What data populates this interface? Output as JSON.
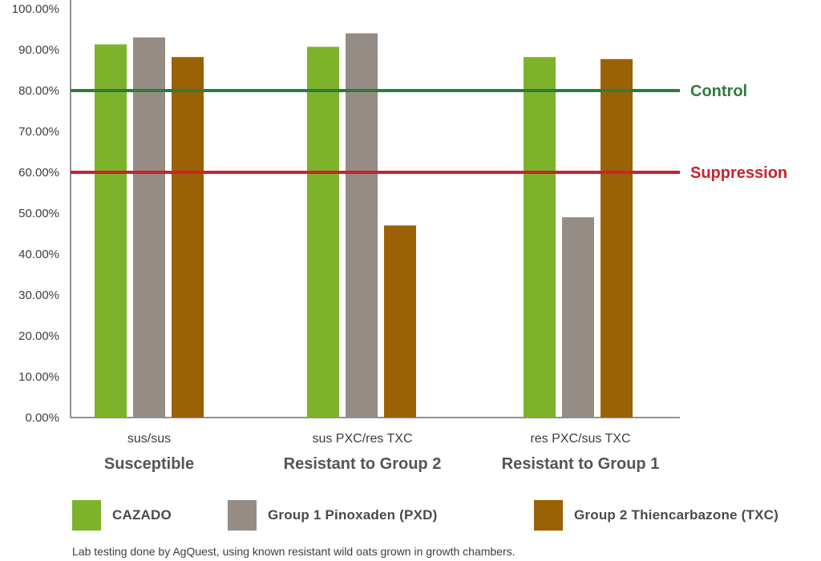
{
  "chart_data": {
    "type": "bar",
    "categories": [
      {
        "sublabel": "sus/sus",
        "label": "Susceptible"
      },
      {
        "sublabel": "sus PXC/res TXC",
        "label": "Resistant to Group 2"
      },
      {
        "sublabel": "res PXC/sus TXC",
        "label": "Resistant to Group 1"
      }
    ],
    "series": [
      {
        "name": "CAZADO",
        "color": "#7cb32b",
        "values": [
          91.3,
          90.7,
          88.2
        ]
      },
      {
        "name": "Group 1 Pinoxaden (PXD)",
        "color": "#958c86",
        "values": [
          93.0,
          94.0,
          49.0
        ]
      },
      {
        "name": "Group 2 Thiencarbazone (TXC)",
        "color": "#9a6205",
        "values": [
          88.2,
          47.0,
          87.7
        ]
      }
    ],
    "reference_lines": [
      {
        "label": "Control",
        "value": 80,
        "color": "#2f7a3d"
      },
      {
        "label": "Suppression",
        "value": 60,
        "color": "#c8242b"
      }
    ],
    "y_ticks": [
      "0.00%",
      "10.00%",
      "20.00%",
      "30.00%",
      "40.00%",
      "50.00%",
      "60.00%",
      "70.00%",
      "80.00%",
      "90.00%",
      "100.00%"
    ],
    "ylim": [
      0,
      100
    ],
    "grid": false,
    "legend_position": "bottom"
  },
  "footnote": "Lab testing done by AgQuest, using known resistant wild oats grown in growth chambers."
}
